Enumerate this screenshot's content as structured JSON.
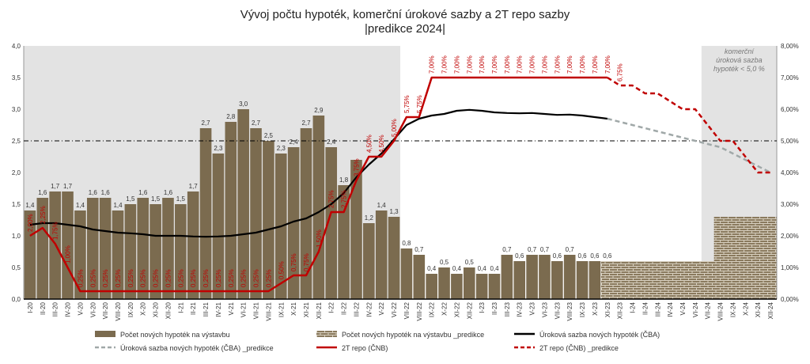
{
  "chart_data": {
    "type": "bar",
    "title_line1": "Vývoj počtu hypoték, komerční úrokové sazby a 2T repo sazby",
    "title_line2": "|predikce 2024|",
    "categories": [
      "I-20",
      "II-20",
      "III-20",
      "IV-20",
      "V-20",
      "VI-20",
      "VII-20",
      "VIII-20",
      "IX-20",
      "X-20",
      "XI-20",
      "XII-20",
      "I-21",
      "II-21",
      "III-21",
      "IV-21",
      "V-21",
      "VI-21",
      "VII-21",
      "VIII-21",
      "IX-21",
      "X-21",
      "XI-21",
      "XII-21",
      "I-22",
      "II-22",
      "III-22",
      "IV-22",
      "V-22",
      "VI-22",
      "VII-22",
      "VIII-22",
      "IX-22",
      "X-22",
      "XI-22",
      "XII-22",
      "I-23",
      "II-23",
      "III-23",
      "IV-23",
      "V-23",
      "VI-23",
      "VII-23",
      "VIII-23",
      "IX-23",
      "X-23",
      "XI-23",
      "XII-23",
      "I-24",
      "II-24",
      "III-24",
      "IV-24",
      "V-24",
      "VI-24",
      "VII-24",
      "VIII-24",
      "IX-24",
      "X-24",
      "XI-24",
      "XII-24"
    ],
    "ylim_left": [
      0,
      4
    ],
    "yticks_left": [
      "0,0",
      "0,5",
      "1,0",
      "1,5",
      "2,0",
      "2,5",
      "3,0",
      "3,5",
      "4,0"
    ],
    "ylim_right": [
      0,
      8
    ],
    "yticks_right": [
      "0,00%",
      "1,00%",
      "2,00%",
      "3,00%",
      "4,00%",
      "5,00%",
      "6,00%",
      "7,00%",
      "8,00%"
    ],
    "reference_line_right": 5.0,
    "annotation": [
      "komerční",
      "úroková sazba",
      "hypoték < 5,0 %"
    ],
    "series": [
      {
        "name": "Počet nových hypoték na výstavbu",
        "type": "bar",
        "color": "#7b6b4f",
        "values": [
          1.4,
          1.6,
          1.7,
          1.7,
          1.4,
          1.6,
          1.6,
          1.4,
          1.5,
          1.6,
          1.5,
          1.6,
          1.5,
          1.7,
          2.7,
          2.3,
          2.8,
          3.0,
          2.7,
          2.5,
          2.3,
          2.4,
          2.7,
          2.9,
          2.4,
          1.8,
          2.2,
          1.2,
          1.4,
          1.3,
          0.8,
          0.7,
          0.4,
          0.5,
          0.4,
          0.5,
          0.4,
          0.4,
          0.7,
          0.6,
          0.7,
          0.7,
          0.6,
          0.7,
          0.6,
          0.6,
          0.6,
          null,
          null,
          null,
          null,
          null,
          null,
          null,
          null,
          null,
          null,
          null,
          null,
          null
        ],
        "labels": [
          "1,4",
          "1,6",
          "1,7",
          "1,7",
          "1,4",
          "1,6",
          "1,6",
          "1,4",
          "1,5",
          "1,6",
          "1,5",
          "1,6",
          "1,5",
          "1,7",
          "2,7",
          "2,3",
          "2,8",
          "3,0",
          "2,7",
          "2,5",
          "2,3",
          "2,4",
          "2,7",
          "2,9",
          "2,4",
          "1,8",
          "",
          "1,2",
          "1,4",
          "1,3",
          "0,8",
          "0,7",
          "0,4",
          "0,5",
          "0,4",
          "0,5",
          "0,4",
          "0,4",
          "0,7",
          "0,6",
          "0,7",
          "0,7",
          "0,6",
          "0,7",
          "0,6",
          "0,6",
          "0,6",
          "",
          "",
          "",
          "",
          "",
          "",
          "",
          "",
          "",
          "",
          "",
          "",
          ""
        ]
      },
      {
        "name": "Počet nových hypoték na výstavbu _predikce",
        "type": "bar",
        "color": "#7b6b4f",
        "values": [
          null,
          null,
          null,
          null,
          null,
          null,
          null,
          null,
          null,
          null,
          null,
          null,
          null,
          null,
          null,
          null,
          null,
          null,
          null,
          null,
          null,
          null,
          null,
          null,
          null,
          null,
          null,
          null,
          null,
          null,
          null,
          null,
          null,
          null,
          null,
          null,
          null,
          null,
          null,
          null,
          null,
          null,
          null,
          null,
          null,
          null,
          0.6,
          0.6,
          0.6,
          0.6,
          0.6,
          0.6,
          0.6,
          0.6,
          0.6,
          1.3,
          1.3,
          1.3,
          1.3,
          1.3
        ]
      },
      {
        "name": "Úroková sazba nových hypoték (ČBA)",
        "type": "line",
        "color": "#000000",
        "values": [
          2.35,
          2.4,
          2.4,
          2.35,
          2.3,
          2.2,
          2.15,
          2.1,
          2.08,
          2.05,
          2.0,
          2.0,
          2.0,
          1.98,
          1.97,
          1.98,
          2.0,
          2.05,
          2.1,
          2.2,
          2.3,
          2.45,
          2.55,
          2.75,
          3.0,
          3.35,
          3.85,
          4.25,
          4.6,
          5.05,
          5.5,
          5.7,
          5.8,
          5.85,
          5.95,
          5.98,
          5.95,
          5.9,
          5.88,
          5.87,
          5.88,
          5.85,
          5.82,
          5.83,
          5.8,
          5.75,
          5.7,
          null,
          null,
          null,
          null,
          null,
          null,
          null,
          null,
          null,
          null,
          null,
          null,
          null
        ]
      },
      {
        "name": "Úroková sazba nových hypoték (ČBA) _predikce",
        "type": "line",
        "color": "#a0a8a8",
        "values": [
          null,
          null,
          null,
          null,
          null,
          null,
          null,
          null,
          null,
          null,
          null,
          null,
          null,
          null,
          null,
          null,
          null,
          null,
          null,
          null,
          null,
          null,
          null,
          null,
          null,
          null,
          null,
          null,
          null,
          null,
          null,
          null,
          null,
          null,
          null,
          null,
          null,
          null,
          null,
          null,
          null,
          null,
          null,
          null,
          null,
          null,
          5.7,
          5.6,
          5.5,
          5.4,
          5.3,
          5.2,
          5.1,
          5.0,
          4.9,
          4.8,
          4.6,
          4.4,
          4.2,
          4.0
        ]
      },
      {
        "name": "2T repo (ČNB)",
        "type": "line",
        "color": "#c00000",
        "values": [
          2.0,
          2.25,
          1.75,
          1.0,
          0.25,
          0.25,
          0.25,
          0.25,
          0.25,
          0.25,
          0.25,
          0.25,
          0.25,
          0.25,
          0.25,
          0.25,
          0.25,
          0.25,
          0.25,
          0.25,
          0.5,
          0.75,
          0.75,
          1.5,
          2.75,
          2.75,
          3.75,
          4.5,
          4.5,
          5.0,
          5.75,
          5.75,
          7.0,
          7.0,
          7.0,
          7.0,
          7.0,
          7.0,
          7.0,
          7.0,
          7.0,
          7.0,
          7.0,
          7.0,
          7.0,
          7.0,
          7.0,
          null,
          null,
          null,
          null,
          null,
          null,
          null,
          null,
          null,
          null,
          null,
          null,
          null
        ],
        "labels": [
          "2,00%",
          "2,25%",
          "1,75%",
          "1,00%",
          "0,25%",
          "0,25%",
          "0,25%",
          "0,25%",
          "0,25%",
          "0,25%",
          "0,25%",
          "0,25%",
          "0,25%",
          "0,25%",
          "0,25%",
          "0,25%",
          "0,25%",
          "0,25%",
          "0,25%",
          "0,25%",
          "0,50%",
          "0,75%",
          "0,75%",
          "1,50%",
          "2,75%",
          "2,75%",
          "3,75%",
          "4,50%",
          "4,50%",
          "5,00%",
          "5,75%",
          "5,75%",
          "7,00%",
          "7,00%",
          "7,00%",
          "7,00%",
          "7,00%",
          "7,00%",
          "7,00%",
          "7,00%",
          "7,00%",
          "7,00%",
          "7,00%",
          "7,00%",
          "7,00%",
          "7,00%",
          "7,00%",
          "",
          "",
          "",
          "",
          "",
          "",
          "",
          "",
          "",
          "",
          "",
          "",
          ""
        ]
      },
      {
        "name": "2T repo (ČNB) _predikce",
        "type": "line",
        "color": "#c00000",
        "values": [
          null,
          null,
          null,
          null,
          null,
          null,
          null,
          null,
          null,
          null,
          null,
          null,
          null,
          null,
          null,
          null,
          null,
          null,
          null,
          null,
          null,
          null,
          null,
          null,
          null,
          null,
          null,
          null,
          null,
          null,
          null,
          null,
          null,
          null,
          null,
          null,
          null,
          null,
          null,
          null,
          null,
          null,
          null,
          null,
          null,
          null,
          7.0,
          6.75,
          6.75,
          6.5,
          6.5,
          6.25,
          6.0,
          6.0,
          5.5,
          5.0,
          5.0,
          4.5,
          4.0,
          4.0
        ],
        "labels": [
          "",
          "",
          "",
          "",
          "",
          "",
          "",
          "",
          "",
          "",
          "",
          "",
          "",
          "",
          "",
          "",
          "",
          "",
          "",
          "",
          "",
          "",
          "",
          "",
          "",
          "",
          "",
          "",
          "",
          "",
          "",
          "",
          "",
          "",
          "",
          "",
          "",
          "",
          "",
          "",
          "",
          "",
          "",
          "",
          "",
          "",
          "",
          "6,75%",
          "",
          "",
          "",
          "",
          "",
          "",
          "",
          "",
          "",
          "",
          "",
          ""
        ]
      }
    ],
    "legend": [
      {
        "label": "Počet nových hypoték na výstavbu",
        "kind": "bar"
      },
      {
        "label": "Počet nových hypoték na výstavbu _predikce",
        "kind": "bar-pattern"
      },
      {
        "label": "Úroková sazba nových hypoték (ČBA)",
        "kind": "line-black"
      },
      {
        "label": "Úroková sazba nových hypoték (ČBA) _predikce",
        "kind": "line-gray-dash"
      },
      {
        "label": "2T repo (ČNB)",
        "kind": "line-red"
      },
      {
        "label": "2T repo (ČNB) _predikce",
        "kind": "line-red-dash"
      }
    ]
  }
}
